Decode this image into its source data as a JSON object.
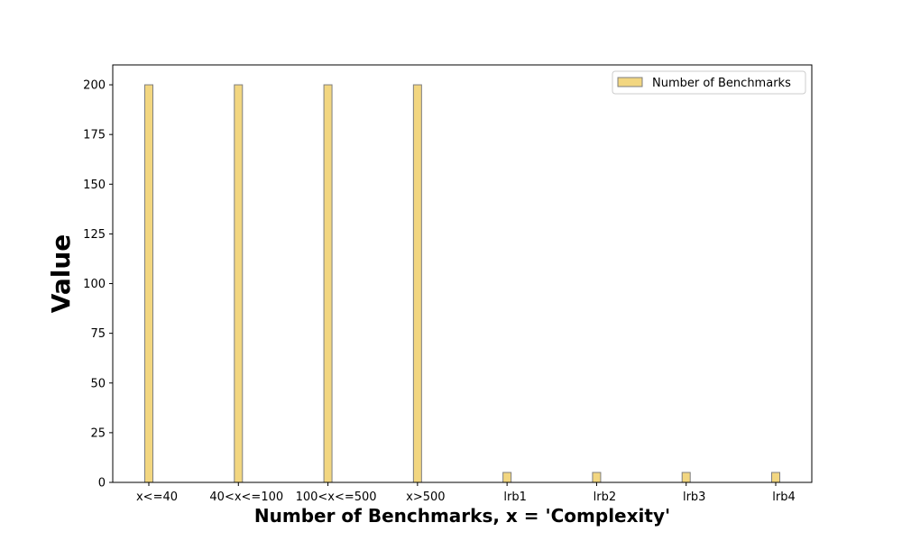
{
  "chart_data": {
    "type": "bar",
    "categories": [
      "x<=40",
      "40<x<=100",
      "100<x<=500",
      "x>500",
      "lrb1",
      "lrb2",
      "lrb3",
      "lrb4"
    ],
    "series": [
      {
        "name": "Number of Benchmarks",
        "values": [
          200,
          200,
          200,
          200,
          5,
          5,
          5,
          5
        ]
      }
    ],
    "xlabel": "Number of Benchmarks, x = 'Complexity'",
    "ylabel": "Value",
    "ylim": [
      0,
      210
    ],
    "yticks": [
      0,
      25,
      50,
      75,
      100,
      125,
      150,
      175,
      200
    ],
    "grid": false,
    "legend_position": "top-right",
    "colors": {
      "bar_fill": "#f2d680",
      "bar_edge": "#7f7f7f",
      "axis": "#000000"
    }
  }
}
